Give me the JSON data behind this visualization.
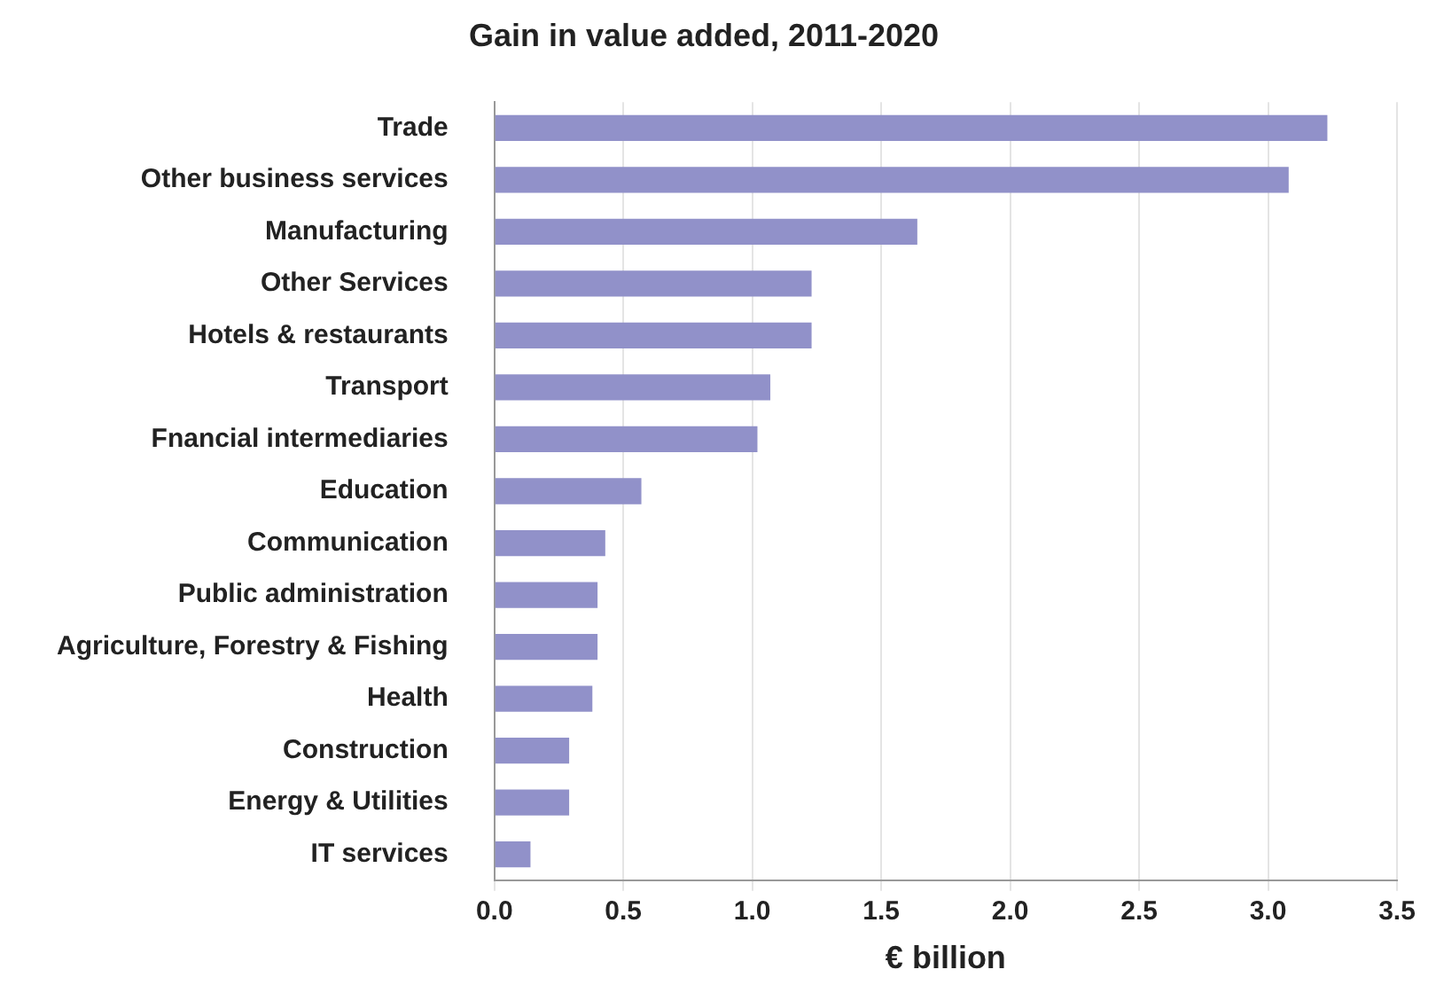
{
  "chart_data": {
    "type": "bar",
    "orientation": "horizontal",
    "title": "Gain in value added, 2011-2020",
    "xlabel": "€ billion",
    "categories": [
      "Trade",
      "Other business services",
      "Manufacturing",
      "Other Services",
      "Hotels & restaurants",
      "Transport",
      "Fnancial intermediaries",
      "Education",
      "Communication",
      "Public administration",
      "Agriculture, Forestry & Fishing",
      "Health",
      "Construction",
      "Energy & Utilities",
      "IT services"
    ],
    "values": [
      3.23,
      3.08,
      1.64,
      1.23,
      1.23,
      1.07,
      1.02,
      0.57,
      0.43,
      0.4,
      0.4,
      0.38,
      0.29,
      0.29,
      0.14
    ],
    "color": "#9191c9",
    "xlim": [
      0,
      3.5
    ],
    "xticks": [
      {
        "value": 0,
        "label": "0.0"
      },
      {
        "value": 0.5,
        "label": "0.5"
      },
      {
        "value": 1,
        "label": "1.0"
      },
      {
        "value": 1.5,
        "label": "1.5"
      },
      {
        "value": 2,
        "label": "2.0"
      },
      {
        "value": 2.5,
        "label": "2.5"
      },
      {
        "value": 3,
        "label": "3.0"
      },
      {
        "value": 3.5,
        "label": "3.5"
      }
    ],
    "grid": "x",
    "legend": false
  }
}
